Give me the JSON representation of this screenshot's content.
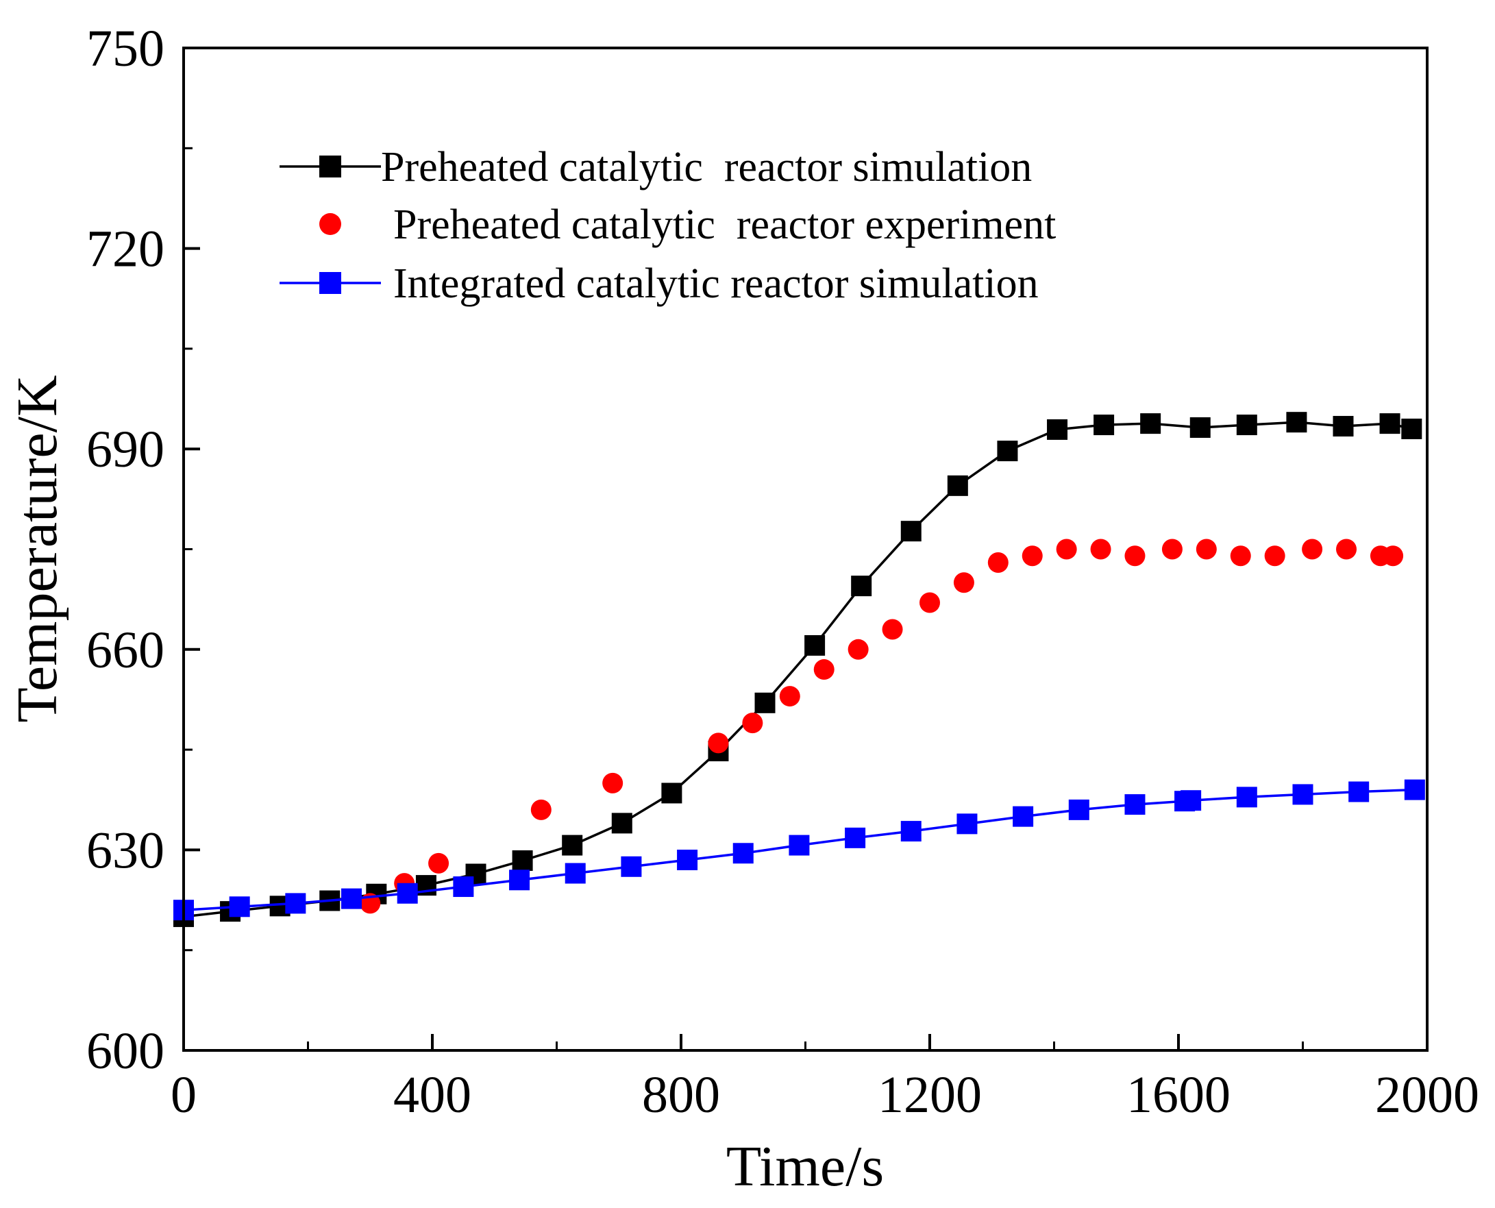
{
  "chart_data": {
    "type": "line",
    "title": "",
    "xlabel": "Time/s",
    "ylabel": "Temperature/K",
    "xlim": [
      0,
      2000
    ],
    "ylim": [
      600,
      750
    ],
    "xticks": [
      0,
      400,
      800,
      1200,
      1600,
      2000
    ],
    "yticks": [
      600,
      630,
      660,
      690,
      720,
      750
    ],
    "x_minor_step": 200,
    "y_minor_step": 15,
    "grid": false,
    "legend_position": "top-left",
    "series": [
      {
        "name": "Preheated catalytic  reactor simulation",
        "kind": "line-marker",
        "marker": "square",
        "color": "#000000",
        "points": [
          [
            0,
            620
          ],
          [
            75,
            620.8
          ],
          [
            155,
            621.6
          ],
          [
            235,
            622.4
          ],
          [
            310,
            623.4
          ],
          [
            390,
            624.7
          ],
          [
            470,
            626.4
          ],
          [
            545,
            628.4
          ],
          [
            625,
            630.7
          ],
          [
            705,
            634
          ],
          [
            785,
            638.5
          ],
          [
            860,
            644.8
          ],
          [
            935,
            652
          ],
          [
            1015,
            660.6
          ],
          [
            1090,
            669.5
          ],
          [
            1170,
            677.7
          ],
          [
            1245,
            684.5
          ],
          [
            1325,
            689.7
          ],
          [
            1405,
            692.9
          ],
          [
            1480,
            693.6
          ],
          [
            1555,
            693.8
          ],
          [
            1635,
            693.2
          ],
          [
            1710,
            693.6
          ],
          [
            1790,
            694
          ],
          [
            1865,
            693.4
          ],
          [
            1940,
            693.8
          ],
          [
            1975,
            693
          ]
        ]
      },
      {
        "name": "Preheated catalytic  reactor experiment",
        "kind": "scatter",
        "marker": "circle",
        "color": "#ff0000",
        "points": [
          [
            300,
            622
          ],
          [
            355,
            625
          ],
          [
            410,
            628
          ],
          [
            575,
            636
          ],
          [
            690,
            640
          ],
          [
            860,
            646
          ],
          [
            915,
            649
          ],
          [
            975,
            653
          ],
          [
            1030,
            657
          ],
          [
            1085,
            660
          ],
          [
            1140,
            663
          ],
          [
            1200,
            667
          ],
          [
            1255,
            670
          ],
          [
            1310,
            673
          ],
          [
            1365,
            674
          ],
          [
            1420,
            675
          ],
          [
            1475,
            675
          ],
          [
            1530,
            674
          ],
          [
            1590,
            675
          ],
          [
            1645,
            675
          ],
          [
            1700,
            674
          ],
          [
            1755,
            674
          ],
          [
            1815,
            675
          ],
          [
            1870,
            675
          ],
          [
            1925,
            674
          ],
          [
            1945,
            674
          ]
        ]
      },
      {
        "name": "Integrated catalytic reactor simulation",
        "kind": "line-marker",
        "marker": "square",
        "color": "#0000ff",
        "points": [
          [
            0,
            621
          ],
          [
            90,
            621.5
          ],
          [
            180,
            622
          ],
          [
            270,
            622.7
          ],
          [
            360,
            623.5
          ],
          [
            450,
            624.5
          ],
          [
            540,
            625.5
          ],
          [
            630,
            626.5
          ],
          [
            720,
            627.5
          ],
          [
            810,
            628.5
          ],
          [
            900,
            629.5
          ],
          [
            990,
            630.7
          ],
          [
            1080,
            631.8
          ],
          [
            1170,
            632.8
          ],
          [
            1260,
            633.9
          ],
          [
            1350,
            635
          ],
          [
            1440,
            636
          ],
          [
            1530,
            636.8
          ],
          [
            1610,
            637.3
          ],
          [
            1620,
            637.4
          ],
          [
            1710,
            637.9
          ],
          [
            1800,
            638.3
          ],
          [
            1890,
            638.7
          ],
          [
            1980,
            639
          ]
        ]
      }
    ]
  }
}
